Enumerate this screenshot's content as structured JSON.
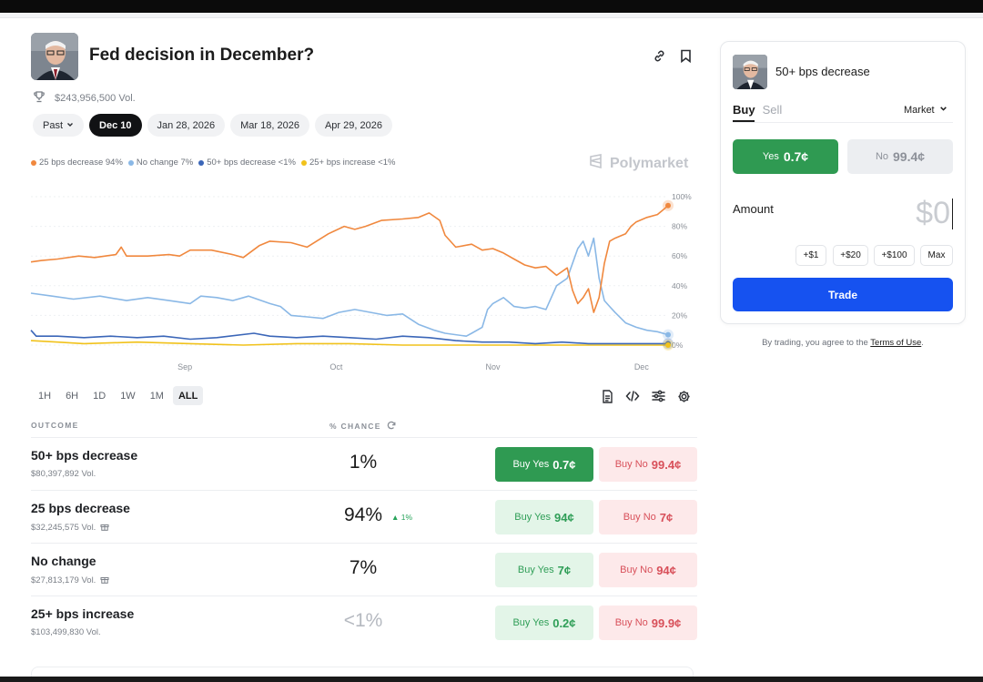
{
  "market": {
    "title": "Fed decision in December?",
    "volume": "$243,956,500 Vol."
  },
  "date_pills": [
    {
      "label": "Past",
      "dropdown": true
    },
    {
      "label": "Dec 10",
      "active": true
    },
    {
      "label": "Jan 28, 2026"
    },
    {
      "label": "Mar 18, 2026"
    },
    {
      "label": "Apr 29, 2026"
    }
  ],
  "legend": [
    {
      "label": "25 bps decrease 94%",
      "color": "#f0883e"
    },
    {
      "label": "No change 7%",
      "color": "#8ab8e6"
    },
    {
      "label": "50+ bps decrease <1%",
      "color": "#3b66b8"
    },
    {
      "label": "25+ bps increase <1%",
      "color": "#f1c21b"
    }
  ],
  "brand": "Polymarket",
  "chart_data": {
    "type": "line",
    "x_ticks": [
      "Sep",
      "Oct",
      "Nov",
      "Dec"
    ],
    "y_ticks": [
      "100%",
      "80%",
      "60%",
      "40%",
      "20%",
      "0%"
    ],
    "ylim": [
      0,
      100
    ],
    "series": [
      {
        "name": "25 bps decrease",
        "color": "#f0883e",
        "points": [
          [
            0,
            56
          ],
          [
            2,
            57
          ],
          [
            5,
            58
          ],
          [
            9,
            60
          ],
          [
            12,
            59
          ],
          [
            16,
            61
          ],
          [
            17,
            66
          ],
          [
            18,
            60
          ],
          [
            22,
            60
          ],
          [
            26,
            61
          ],
          [
            28,
            60
          ],
          [
            30,
            64
          ],
          [
            34,
            64
          ],
          [
            38,
            61
          ],
          [
            40,
            59
          ],
          [
            43,
            67
          ],
          [
            45,
            70
          ],
          [
            49,
            69
          ],
          [
            52,
            66
          ],
          [
            56,
            75
          ],
          [
            59,
            80
          ],
          [
            61,
            78
          ],
          [
            63,
            80
          ],
          [
            66,
            84
          ],
          [
            70,
            85
          ],
          [
            73,
            86
          ],
          [
            75,
            89
          ],
          [
            77,
            84
          ],
          [
            78,
            74
          ],
          [
            80,
            66
          ],
          [
            83,
            68
          ],
          [
            85,
            64
          ],
          [
            87,
            65
          ],
          [
            89,
            62
          ],
          [
            91,
            58
          ],
          [
            93,
            54
          ],
          [
            95,
            52
          ],
          [
            97,
            53
          ],
          [
            99,
            47
          ],
          [
            101,
            52
          ],
          [
            102,
            37
          ],
          [
            103,
            28
          ],
          [
            104,
            32
          ],
          [
            105,
            38
          ],
          [
            106,
            22
          ],
          [
            107,
            32
          ],
          [
            108,
            55
          ],
          [
            109,
            70
          ],
          [
            110,
            72
          ],
          [
            112,
            75
          ],
          [
            113,
            80
          ],
          [
            114,
            83
          ],
          [
            116,
            86
          ],
          [
            118,
            88
          ],
          [
            119,
            91
          ],
          [
            120,
            94
          ]
        ]
      },
      {
        "name": "No change",
        "color": "#8ab8e6",
        "points": [
          [
            0,
            35
          ],
          [
            4,
            33
          ],
          [
            8,
            31
          ],
          [
            13,
            33
          ],
          [
            18,
            30
          ],
          [
            22,
            32
          ],
          [
            26,
            30
          ],
          [
            30,
            28
          ],
          [
            32,
            33
          ],
          [
            35,
            32
          ],
          [
            38,
            30
          ],
          [
            41,
            33
          ],
          [
            45,
            28
          ],
          [
            47,
            26
          ],
          [
            49,
            20
          ],
          [
            52,
            19
          ],
          [
            55,
            18
          ],
          [
            58,
            22
          ],
          [
            61,
            24
          ],
          [
            64,
            22
          ],
          [
            67,
            20
          ],
          [
            70,
            21
          ],
          [
            73,
            14
          ],
          [
            76,
            10
          ],
          [
            78,
            8
          ],
          [
            82,
            6
          ],
          [
            83,
            8
          ],
          [
            85,
            12
          ],
          [
            86,
            24
          ],
          [
            87,
            28
          ],
          [
            89,
            32
          ],
          [
            91,
            26
          ],
          [
            93,
            25
          ],
          [
            95,
            26
          ],
          [
            97,
            24
          ],
          [
            99,
            40
          ],
          [
            101,
            45
          ],
          [
            102,
            55
          ],
          [
            103,
            65
          ],
          [
            104,
            70
          ],
          [
            105,
            60
          ],
          [
            106,
            72
          ],
          [
            107,
            45
          ],
          [
            108,
            30
          ],
          [
            109,
            26
          ],
          [
            110,
            22
          ],
          [
            112,
            15
          ],
          [
            114,
            12
          ],
          [
            116,
            10
          ],
          [
            118,
            9
          ],
          [
            120,
            7
          ]
        ]
      },
      {
        "name": "50+ bps decrease",
        "color": "#3b66b8",
        "points": [
          [
            0,
            10
          ],
          [
            1,
            6
          ],
          [
            5,
            6
          ],
          [
            10,
            5
          ],
          [
            15,
            6
          ],
          [
            20,
            5
          ],
          [
            25,
            6
          ],
          [
            30,
            4
          ],
          [
            35,
            5
          ],
          [
            42,
            8
          ],
          [
            45,
            6
          ],
          [
            50,
            5
          ],
          [
            55,
            6
          ],
          [
            60,
            5
          ],
          [
            65,
            4
          ],
          [
            70,
            6
          ],
          [
            75,
            5
          ],
          [
            80,
            3
          ],
          [
            85,
            2
          ],
          [
            90,
            2
          ],
          [
            95,
            1
          ],
          [
            100,
            2
          ],
          [
            105,
            1
          ],
          [
            110,
            1
          ],
          [
            115,
            1
          ],
          [
            120,
            1
          ]
        ]
      },
      {
        "name": "25+ bps increase",
        "color": "#f1c21b",
        "points": [
          [
            0,
            3
          ],
          [
            5,
            2
          ],
          [
            10,
            1
          ],
          [
            20,
            2
          ],
          [
            30,
            1
          ],
          [
            40,
            0
          ],
          [
            50,
            1
          ],
          [
            60,
            1
          ],
          [
            70,
            0
          ],
          [
            80,
            0
          ],
          [
            90,
            0
          ],
          [
            100,
            0
          ],
          [
            110,
            0
          ],
          [
            120,
            0
          ]
        ]
      }
    ]
  },
  "time_ranges": [
    {
      "label": "1H"
    },
    {
      "label": "6H"
    },
    {
      "label": "1D"
    },
    {
      "label": "1W"
    },
    {
      "label": "1M"
    },
    {
      "label": "ALL",
      "active": true
    }
  ],
  "table": {
    "col_outcome": "OUTCOME",
    "col_chance": "% CHANCE",
    "rows": [
      {
        "name": "50+ bps decrease",
        "volume": "$80,397,892 Vol.",
        "gift": false,
        "chance": "1%",
        "muted": false,
        "delta": "",
        "yes_label": "Buy Yes",
        "yes_price": "0.7¢",
        "yes_solid": true,
        "no_label": "Buy No",
        "no_price": "99.4¢"
      },
      {
        "name": "25 bps decrease",
        "volume": "$32,245,575 Vol.",
        "gift": true,
        "chance": "94%",
        "muted": false,
        "delta": "▲ 1%",
        "yes_label": "Buy Yes",
        "yes_price": "94¢",
        "yes_solid": false,
        "no_label": "Buy No",
        "no_price": "7¢"
      },
      {
        "name": "No change",
        "volume": "$27,813,179 Vol.",
        "gift": true,
        "chance": "7%",
        "muted": false,
        "delta": "",
        "yes_label": "Buy Yes",
        "yes_price": "7¢",
        "yes_solid": false,
        "no_label": "Buy No",
        "no_price": "94¢"
      },
      {
        "name": "25+ bps increase",
        "volume": "$103,499,830 Vol.",
        "gift": false,
        "chance": "<1%",
        "muted": true,
        "delta": "",
        "yes_label": "Buy Yes",
        "yes_price": "0.2¢",
        "yes_solid": false,
        "no_label": "Buy No",
        "no_price": "99.9¢"
      }
    ]
  },
  "trade_panel": {
    "title": "50+ bps decrease",
    "tab_buy": "Buy",
    "tab_sell": "Sell",
    "order_type": "Market",
    "yes_label": "Yes",
    "yes_price": "0.7¢",
    "no_label": "No",
    "no_price": "99.4¢",
    "amount_label": "Amount",
    "amount_value": "$0",
    "quick_amounts": [
      "+$1",
      "+$20",
      "+$100",
      "Max"
    ],
    "trade_button": "Trade",
    "terms_prefix": "By trading, you agree to the",
    "terms_link": "Terms of Use",
    "terms_suffix": "."
  }
}
